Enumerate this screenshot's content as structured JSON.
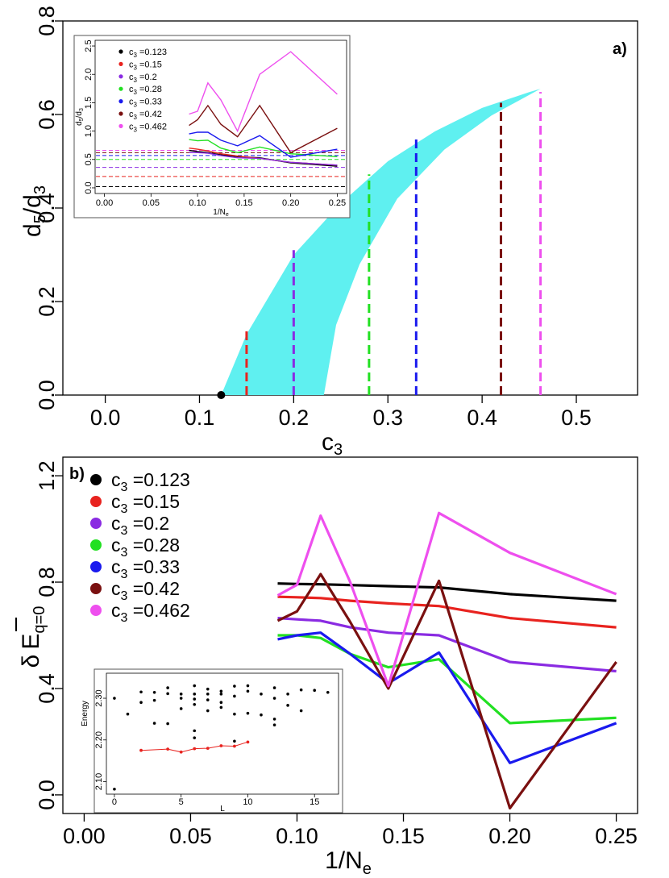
{
  "chart_data": [
    {
      "id": "panel_a",
      "type": "area",
      "tag": "a)",
      "xlabel_main": "c",
      "xlabel_sub": "3",
      "ylabel_main": "d",
      "ylabel_sub1": "5",
      "ylabel_sep": "/d",
      "ylabel_sub2": "3",
      "xlim": [
        -0.045,
        0.565
      ],
      "ylim": [
        0.0,
        0.8
      ],
      "xticks": [
        0.0,
        0.1,
        0.2,
        0.3,
        0.4,
        0.5
      ],
      "xtick_labels": [
        "0.0",
        "0.1",
        "0.2",
        "0.3",
        "0.4",
        "0.5"
      ],
      "yticks": [
        0.0,
        0.2,
        0.4,
        0.6,
        0.8
      ],
      "ytick_labels": [
        "0.0",
        "0.2",
        "0.4",
        "0.6",
        "0.8"
      ],
      "region": {
        "color": "#5ff0f0",
        "upper": [
          [
            0.123,
            0.0
          ],
          [
            0.15,
            0.13
          ],
          [
            0.2,
            0.3
          ],
          [
            0.25,
            0.41
          ],
          [
            0.3,
            0.5
          ],
          [
            0.35,
            0.564
          ],
          [
            0.4,
            0.614
          ],
          [
            0.45,
            0.648
          ],
          [
            0.462,
            0.655
          ]
        ],
        "lower": [
          [
            0.462,
            0.655
          ],
          [
            0.41,
            0.598
          ],
          [
            0.36,
            0.525
          ],
          [
            0.31,
            0.42
          ],
          [
            0.27,
            0.28
          ],
          [
            0.245,
            0.15
          ],
          [
            0.232,
            0.0
          ]
        ]
      },
      "point": {
        "x": 0.123,
        "y": 0.0,
        "color": "#000000"
      },
      "vlines": [
        {
          "c3": 0.15,
          "y": 0.145,
          "color": "#e8231f"
        },
        {
          "c3": 0.2,
          "y": 0.31,
          "color": "#8a2be2"
        },
        {
          "c3": 0.28,
          "y": 0.472,
          "color": "#22e022"
        },
        {
          "c3": 0.33,
          "y": 0.548,
          "color": "#1a1aee"
        },
        {
          "c3": 0.42,
          "y": 0.625,
          "color": "#7a1010"
        },
        {
          "c3": 0.462,
          "y": 0.648,
          "color": "#ee4fee"
        }
      ],
      "inset": {
        "xlabel_main": "1/N",
        "xlabel_sub": "e",
        "ylabel_main": "d",
        "ylabel_sub1": "5",
        "ylabel_sep": "/d",
        "ylabel_sub2": "3",
        "xlim": [
          -0.01,
          0.26
        ],
        "ylim": [
          -0.1,
          2.6
        ],
        "xticks": [
          0.0,
          0.05,
          0.1,
          0.15,
          0.2,
          0.25
        ],
        "xtick_labels": [
          "0.00",
          "0.05",
          "0.10",
          "0.15",
          "0.20",
          "0.25"
        ],
        "yticks": [
          0.0,
          0.5,
          1.0,
          1.5,
          2.0,
          2.5
        ],
        "ytick_labels": [
          "0.0",
          "0.5",
          "1.0",
          "1.5",
          "2.0",
          "2.5"
        ],
        "x": [
          0.0909,
          0.1,
          0.1111,
          0.125,
          0.1429,
          0.1667,
          0.2,
          0.25
        ],
        "legend": [
          {
            "c_label": "c",
            "c_sub": "3",
            "label": " =0.123"
          },
          {
            "c_label": "c",
            "c_sub": "3",
            "label": " =0.15"
          },
          {
            "c_label": "c",
            "c_sub": "3",
            "label": " =0.2"
          },
          {
            "c_label": "c",
            "c_sub": "3",
            "label": " =0.28"
          },
          {
            "c_label": "c",
            "c_sub": "3",
            "label": " =0.33"
          },
          {
            "c_label": "c",
            "c_sub": "3",
            "label": " =0.42"
          },
          {
            "c_label": "c",
            "c_sub": "3",
            "label": " =0.462"
          }
        ],
        "series": [
          {
            "name": "c3=0.123",
            "color": "#000000",
            "hline": 0.02,
            "values": [
              0.66,
              0.64,
              0.62,
              0.58,
              0.55,
              0.53,
              0.44,
              0.38
            ]
          },
          {
            "name": "c3=0.15",
            "color": "#e8231f",
            "hline": 0.2,
            "values": [
              0.7,
              0.68,
              0.65,
              0.6,
              0.56,
              0.52,
              0.45,
              0.4
            ]
          },
          {
            "name": "c3=0.2",
            "color": "#8a2be2",
            "hline": 0.36,
            "values": [
              0.62,
              0.62,
              0.61,
              0.57,
              0.53,
              0.52,
              0.45,
              0.4
            ]
          },
          {
            "name": "c3=0.28",
            "color": "#22e022",
            "hline": 0.5,
            "values": [
              0.85,
              0.83,
              0.84,
              0.7,
              0.62,
              0.72,
              0.6,
              0.55
            ]
          },
          {
            "name": "c3=0.33",
            "color": "#1a1aee",
            "hline": 0.57,
            "values": [
              0.95,
              0.98,
              0.98,
              0.84,
              0.74,
              0.92,
              0.54,
              0.68
            ]
          },
          {
            "name": "c3=0.42",
            "color": "#7a1010",
            "hline": 0.62,
            "values": [
              1.1,
              1.2,
              1.45,
              1.12,
              0.9,
              1.45,
              0.62,
              1.05
            ]
          },
          {
            "name": "c3=0.462",
            "color": "#ee4fee",
            "hline": 0.66,
            "values": [
              1.3,
              1.35,
              1.85,
              1.55,
              1.0,
              2.0,
              2.4,
              1.65
            ]
          }
        ]
      }
    },
    {
      "id": "panel_b",
      "type": "line",
      "tag": "b)",
      "xlabel_main": "1/N",
      "xlabel_sub": "e",
      "ylabel_delta": "δ",
      "ylabel_main": "E",
      "ylabel_sub": "q=0",
      "xlim": [
        -0.01,
        0.26
      ],
      "ylim": [
        -0.07,
        1.27
      ],
      "xticks": [
        0.0,
        0.05,
        0.1,
        0.15,
        0.2,
        0.25
      ],
      "xtick_labels": [
        "0.00",
        "0.05",
        "0.10",
        "0.15",
        "0.20",
        "0.25"
      ],
      "yticks": [
        0.0,
        0.4,
        0.8,
        1.2
      ],
      "ytick_labels": [
        "0.0",
        "0.4",
        "0.8",
        "1.2"
      ],
      "x": [
        0.0909,
        0.1,
        0.1111,
        0.125,
        0.1429,
        0.1667,
        0.2,
        0.25
      ],
      "legend": [
        {
          "c_label": "c",
          "c_sub": "3",
          "label": " =0.123"
        },
        {
          "c_label": "c",
          "c_sub": "3",
          "label": " =0.15"
        },
        {
          "c_label": "c",
          "c_sub": "3",
          "label": " =0.2"
        },
        {
          "c_label": "c",
          "c_sub": "3",
          "label": " =0.28"
        },
        {
          "c_label": "c",
          "c_sub": "3",
          "label": " =0.33"
        },
        {
          "c_label": "c",
          "c_sub": "3",
          "label": " =0.42"
        },
        {
          "c_label": "c",
          "c_sub": "3",
          "label": " =0.462"
        }
      ],
      "series": [
        {
          "name": "c3=0.123",
          "color": "#000000",
          "values": [
            0.795,
            0.793,
            0.792,
            0.789,
            0.785,
            0.78,
            0.755,
            0.73
          ]
        },
        {
          "name": "c3=0.15",
          "color": "#e8231f",
          "values": [
            0.745,
            0.743,
            0.74,
            0.73,
            0.72,
            0.71,
            0.665,
            0.63
          ]
        },
        {
          "name": "c3=0.2",
          "color": "#8a2be2",
          "values": [
            0.665,
            0.66,
            0.655,
            0.63,
            0.61,
            0.6,
            0.5,
            0.465
          ]
        },
        {
          "name": "c3=0.28",
          "color": "#22e022",
          "values": [
            0.6,
            0.6,
            0.59,
            0.53,
            0.48,
            0.51,
            0.27,
            0.29
          ]
        },
        {
          "name": "c3=0.33",
          "color": "#1a1aee",
          "values": [
            0.585,
            0.6,
            0.61,
            0.53,
            0.42,
            0.535,
            0.12,
            0.27
          ]
        },
        {
          "name": "c3=0.42",
          "color": "#7a1010",
          "values": [
            0.655,
            0.69,
            0.83,
            0.65,
            0.4,
            0.805,
            -0.05,
            0.5
          ]
        },
        {
          "name": "c3=0.462",
          "color": "#ee4fee",
          "values": [
            0.75,
            0.79,
            1.05,
            0.8,
            0.41,
            1.06,
            0.91,
            0.755
          ]
        }
      ],
      "inset": {
        "xlabel": "L",
        "ylabel": "Energy",
        "xlim": [
          -0.6,
          16.8
        ],
        "ylim": [
          2.07,
          2.36
        ],
        "xticks": [
          0,
          5,
          10,
          15
        ],
        "xtick_labels": [
          "0",
          "5",
          "10",
          "15"
        ],
        "yticks": [
          2.1,
          2.2,
          2.3
        ],
        "ytick_labels": [
          "2.10",
          "2.20",
          "2.30"
        ],
        "red_series": {
          "color": "#e8231f",
          "L": [
            2,
            4,
            5,
            6,
            7,
            8,
            9,
            10
          ],
          "E": [
            2.175,
            2.178,
            2.171,
            2.179,
            2.18,
            2.186,
            2.185,
            2.195
          ]
        },
        "black_points": {
          "L": [
            0,
            0,
            1,
            2,
            2,
            3,
            3,
            3,
            4,
            4,
            4,
            5,
            5,
            5,
            6,
            6,
            6,
            6,
            6,
            6,
            7,
            7,
            7,
            7,
            8,
            8,
            8,
            8,
            9,
            9,
            9,
            9,
            10,
            10,
            10,
            11,
            11,
            12,
            12,
            12,
            12,
            13,
            13,
            14,
            14,
            15,
            16
          ],
          "E": [
            2.082,
            2.3,
            2.262,
            2.315,
            2.29,
            2.24,
            2.295,
            2.314,
            2.239,
            2.325,
            2.311,
            2.31,
            2.275,
            2.3,
            2.222,
            2.285,
            2.33,
            2.31,
            2.298,
            2.205,
            2.322,
            2.27,
            2.31,
            2.296,
            2.317,
            2.31,
            2.278,
            2.29,
            2.329,
            2.305,
            2.262,
            2.197,
            2.33,
            2.317,
            2.264,
            2.31,
            2.26,
            2.25,
            2.3,
            2.236,
            2.325,
            2.283,
            2.31,
            2.27,
            2.32,
            2.319,
            2.314
          ]
        }
      }
    }
  ]
}
